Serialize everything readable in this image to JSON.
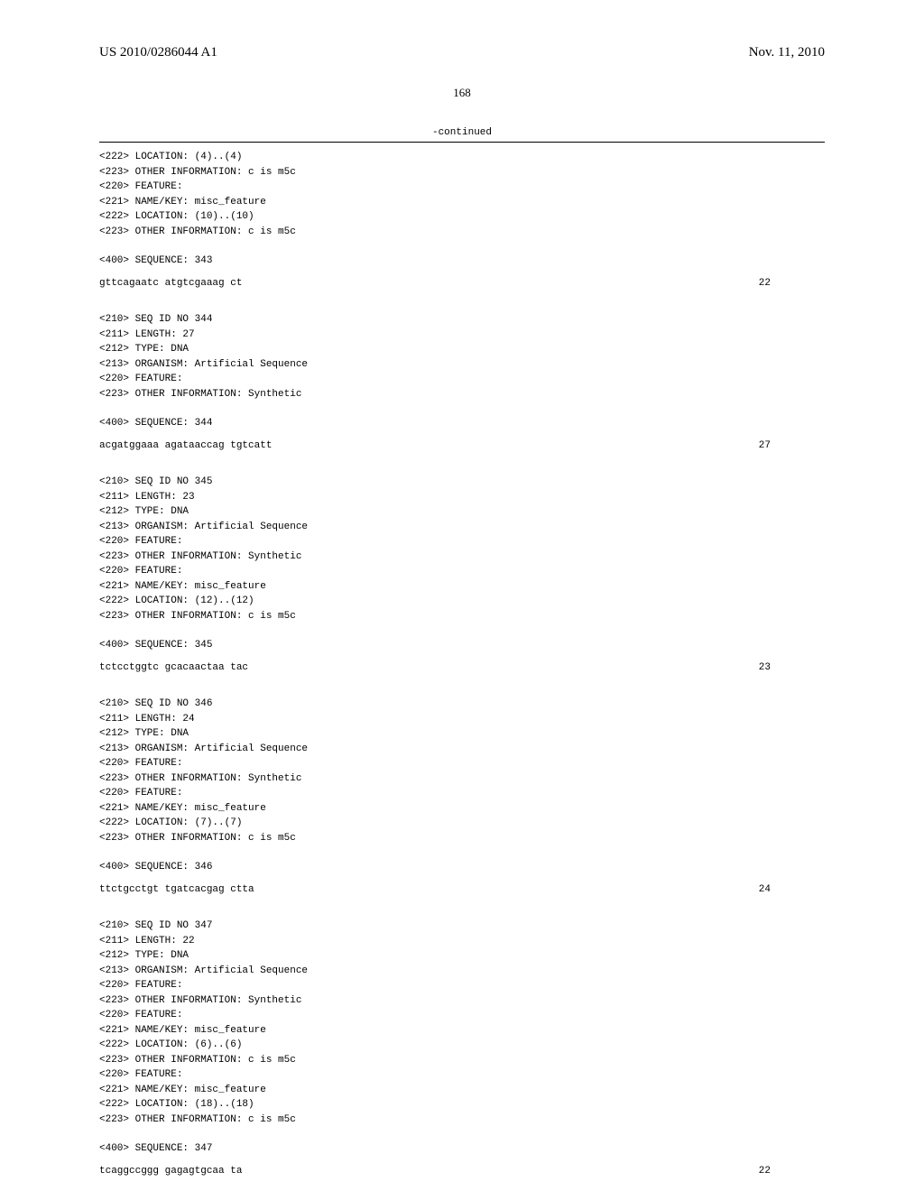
{
  "header": {
    "patent_id": "US 2010/0286044 A1",
    "date": "Nov. 11, 2010"
  },
  "page_number": "168",
  "continued_label": "-continued",
  "blocks": [
    {
      "type": "lines",
      "lines": [
        "<222> LOCATION: (4)..(4)",
        "<223> OTHER INFORMATION: c is m5c",
        "<220> FEATURE:",
        "<221> NAME/KEY: misc_feature",
        "<222> LOCATION: (10)..(10)",
        "<223> OTHER INFORMATION: c is m5c"
      ]
    },
    {
      "type": "spacer"
    },
    {
      "type": "lines",
      "lines": [
        "<400> SEQUENCE: 343"
      ]
    },
    {
      "type": "spacer-small"
    },
    {
      "type": "seq",
      "text": "gttcagaatc atgtcgaaag ct",
      "num": "22"
    },
    {
      "type": "spacer"
    },
    {
      "type": "spacer-small"
    },
    {
      "type": "lines",
      "lines": [
        "<210> SEQ ID NO 344",
        "<211> LENGTH: 27",
        "<212> TYPE: DNA",
        "<213> ORGANISM: Artificial Sequence",
        "<220> FEATURE:",
        "<223> OTHER INFORMATION: Synthetic"
      ]
    },
    {
      "type": "spacer"
    },
    {
      "type": "lines",
      "lines": [
        "<400> SEQUENCE: 344"
      ]
    },
    {
      "type": "spacer-small"
    },
    {
      "type": "seq",
      "text": "acgatggaaa agataaccag tgtcatt",
      "num": "27"
    },
    {
      "type": "spacer"
    },
    {
      "type": "spacer-small"
    },
    {
      "type": "lines",
      "lines": [
        "<210> SEQ ID NO 345",
        "<211> LENGTH: 23",
        "<212> TYPE: DNA",
        "<213> ORGANISM: Artificial Sequence",
        "<220> FEATURE:",
        "<223> OTHER INFORMATION: Synthetic",
        "<220> FEATURE:",
        "<221> NAME/KEY: misc_feature",
        "<222> LOCATION: (12)..(12)",
        "<223> OTHER INFORMATION: c is m5c"
      ]
    },
    {
      "type": "spacer"
    },
    {
      "type": "lines",
      "lines": [
        "<400> SEQUENCE: 345"
      ]
    },
    {
      "type": "spacer-small"
    },
    {
      "type": "seq",
      "text": "tctcctggtc gcacaactaa tac",
      "num": "23"
    },
    {
      "type": "spacer"
    },
    {
      "type": "spacer-small"
    },
    {
      "type": "lines",
      "lines": [
        "<210> SEQ ID NO 346",
        "<211> LENGTH: 24",
        "<212> TYPE: DNA",
        "<213> ORGANISM: Artificial Sequence",
        "<220> FEATURE:",
        "<223> OTHER INFORMATION: Synthetic",
        "<220> FEATURE:",
        "<221> NAME/KEY: misc_feature",
        "<222> LOCATION: (7)..(7)",
        "<223> OTHER INFORMATION: c is m5c"
      ]
    },
    {
      "type": "spacer"
    },
    {
      "type": "lines",
      "lines": [
        "<400> SEQUENCE: 346"
      ]
    },
    {
      "type": "spacer-small"
    },
    {
      "type": "seq",
      "text": "ttctgcctgt tgatcacgag ctta",
      "num": "24"
    },
    {
      "type": "spacer"
    },
    {
      "type": "spacer-small"
    },
    {
      "type": "lines",
      "lines": [
        "<210> SEQ ID NO 347",
        "<211> LENGTH: 22",
        "<212> TYPE: DNA",
        "<213> ORGANISM: Artificial Sequence",
        "<220> FEATURE:",
        "<223> OTHER INFORMATION: Synthetic",
        "<220> FEATURE:",
        "<221> NAME/KEY: misc_feature",
        "<222> LOCATION: (6)..(6)",
        "<223> OTHER INFORMATION: c is m5c",
        "<220> FEATURE:",
        "<221> NAME/KEY: misc_feature",
        "<222> LOCATION: (18)..(18)",
        "<223> OTHER INFORMATION: c is m5c"
      ]
    },
    {
      "type": "spacer"
    },
    {
      "type": "lines",
      "lines": [
        "<400> SEQUENCE: 347"
      ]
    },
    {
      "type": "spacer-small"
    },
    {
      "type": "seq",
      "text": "tcaggccggg gagagtgcaa ta",
      "num": "22"
    }
  ]
}
